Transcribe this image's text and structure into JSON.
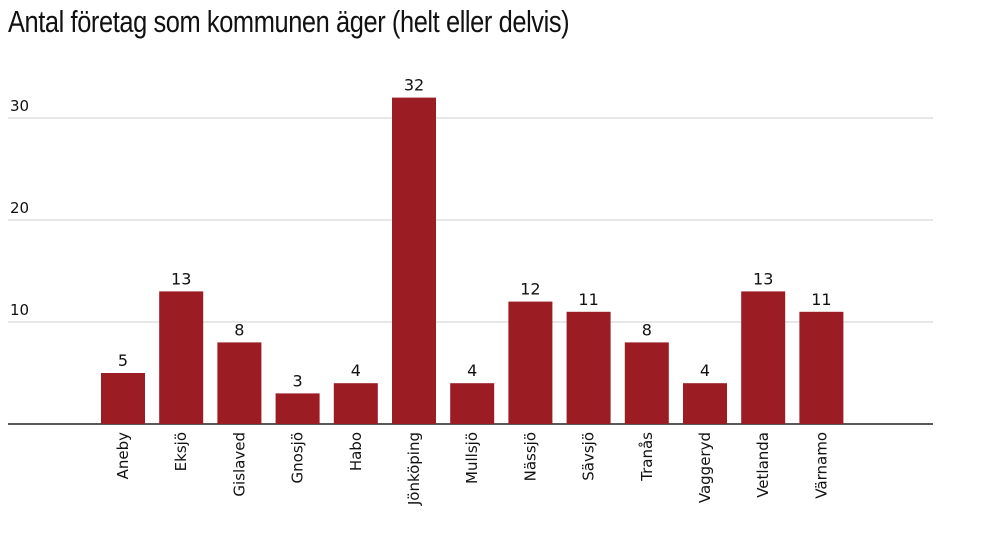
{
  "chart_data": {
    "type": "bar",
    "title": "Antal företag som kommunen äger (helt eller delvis)",
    "categories": [
      "Aneby",
      "Eksjö",
      "Gislaved",
      "Gnosjö",
      "Habo",
      "Jönköping",
      "Mullsjö",
      "Nässjö",
      "Sävsjö",
      "Tranås",
      "Vaggeryd",
      "Vetlanda",
      "Värnamo"
    ],
    "values": [
      5,
      13,
      8,
      3,
      4,
      32,
      4,
      12,
      11,
      8,
      4,
      13,
      11
    ],
    "yticks": [
      "10",
      "20",
      "30"
    ],
    "ylim": [
      0,
      34
    ],
    "grid": true,
    "bar_color": "#9b1c22",
    "xlabel": "",
    "ylabel": ""
  }
}
